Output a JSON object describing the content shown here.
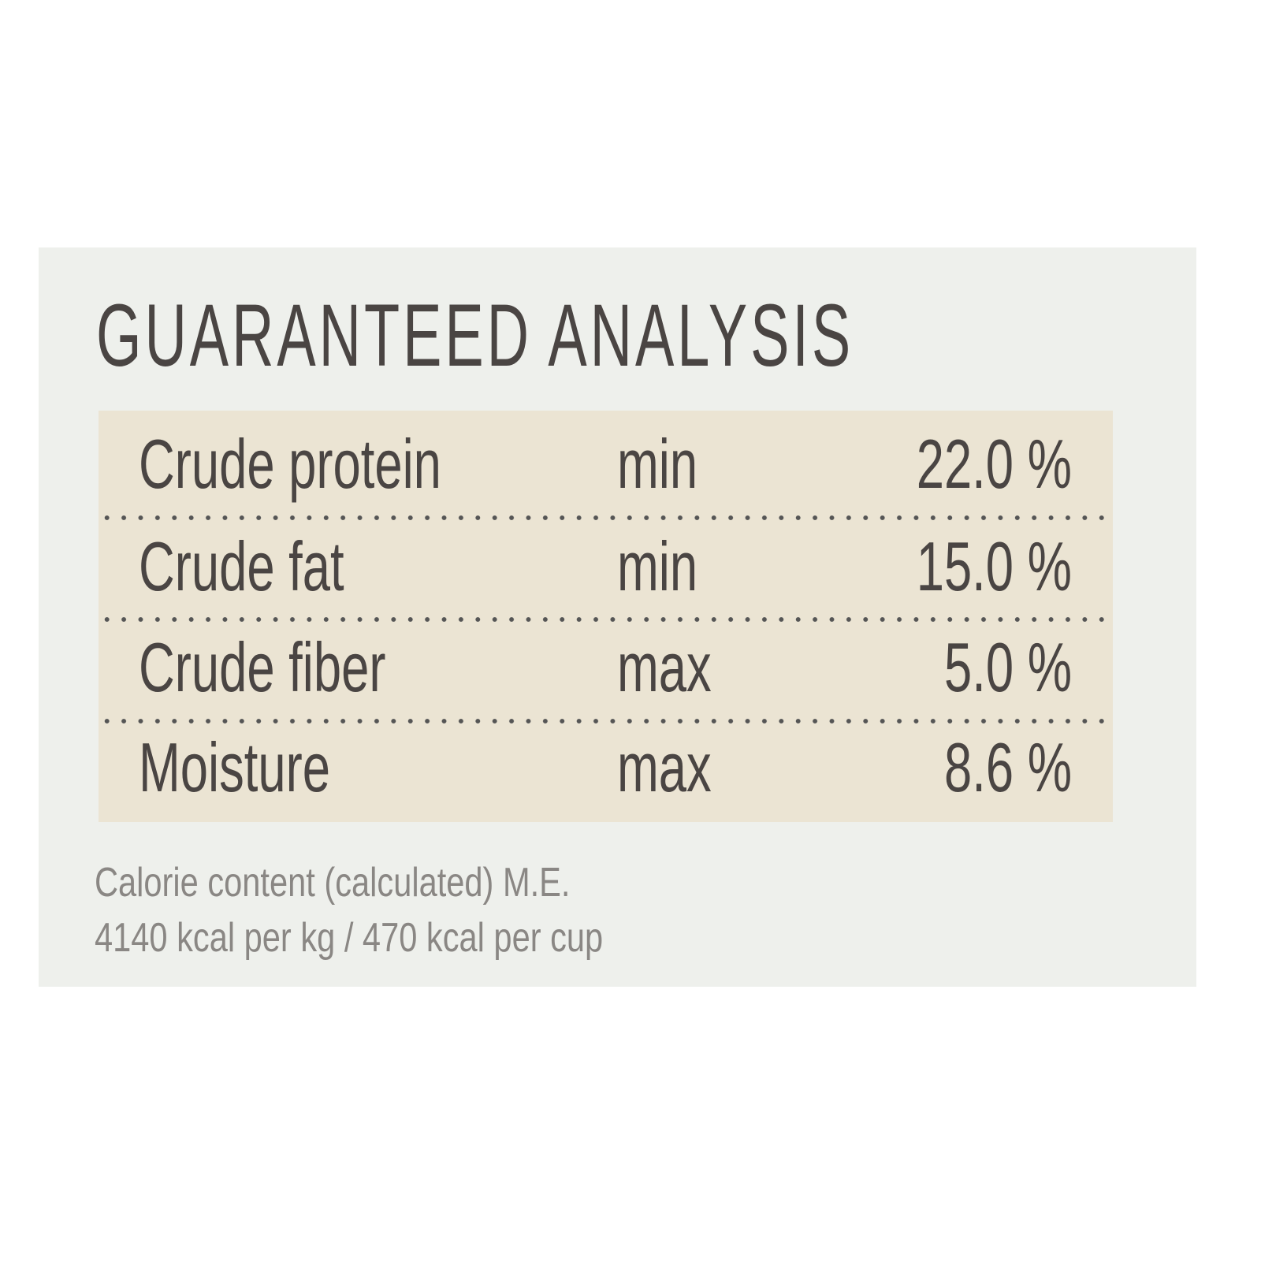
{
  "label": {
    "title": "GUARANTEED ANALYSIS",
    "colors": {
      "panel": "#eef0ec",
      "table": "#ebe4d3",
      "text": "#4a4543",
      "footnote": "#8a8784"
    },
    "rows": [
      {
        "nutrient": "Crude protein",
        "qualifier": "min",
        "value": "22.0 %"
      },
      {
        "nutrient": "Crude fat",
        "qualifier": "min",
        "value": "15.0 %"
      },
      {
        "nutrient": "Crude fiber",
        "qualifier": "max",
        "value": "5.0 %"
      },
      {
        "nutrient": "Moisture",
        "qualifier": "max",
        "value": "8.6 %"
      }
    ],
    "calorie_line1": "Calorie content (calculated) M.E.",
    "calorie_line2": "4140 kcal per kg / 470 kcal per cup"
  }
}
